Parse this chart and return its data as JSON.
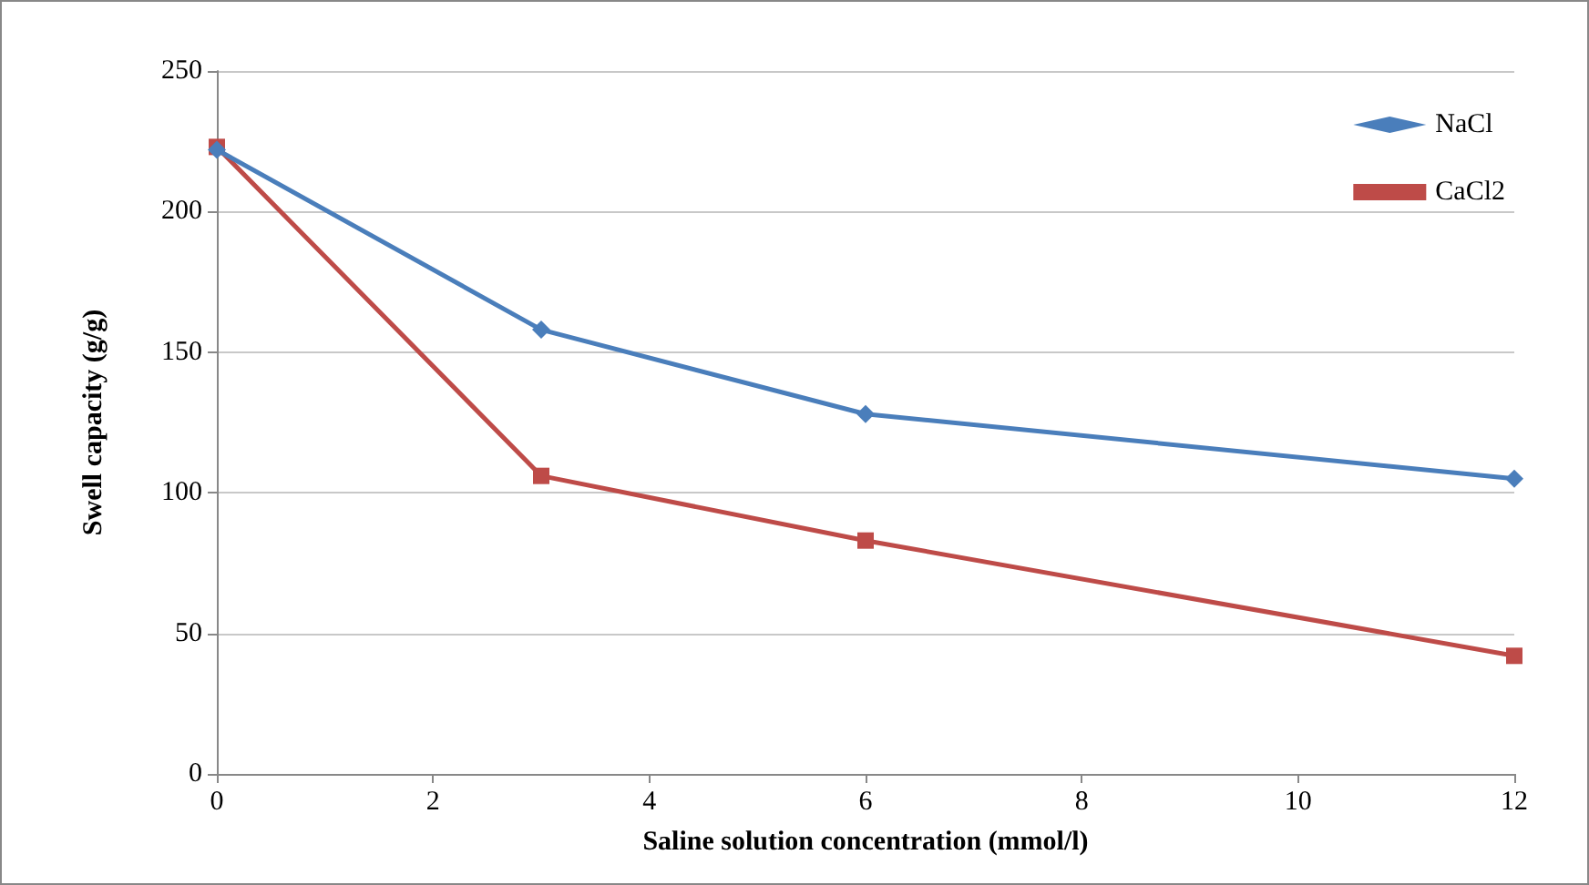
{
  "chart_data": {
    "type": "line",
    "xlabel": "Saline solution concentration (mmol/l)",
    "ylabel": "Swell capacity (g/g)",
    "x": [
      0,
      3,
      6,
      12
    ],
    "series": [
      {
        "name": "NaCl",
        "color": "#4a7ebb",
        "marker": "diamond",
        "values": [
          222,
          158,
          128,
          105
        ]
      },
      {
        "name": "CaCl2",
        "color": "#be4b48",
        "marker": "square",
        "values": [
          223,
          106,
          83,
          42
        ]
      }
    ],
    "xlim": [
      0,
      12
    ],
    "xticks": [
      0,
      2,
      4,
      6,
      8,
      10,
      12
    ],
    "ylim": [
      0,
      250
    ],
    "yticks": [
      0,
      50,
      100,
      150,
      200,
      250
    ],
    "grid": "y",
    "legend": "top right",
    "line_style": "solid"
  }
}
